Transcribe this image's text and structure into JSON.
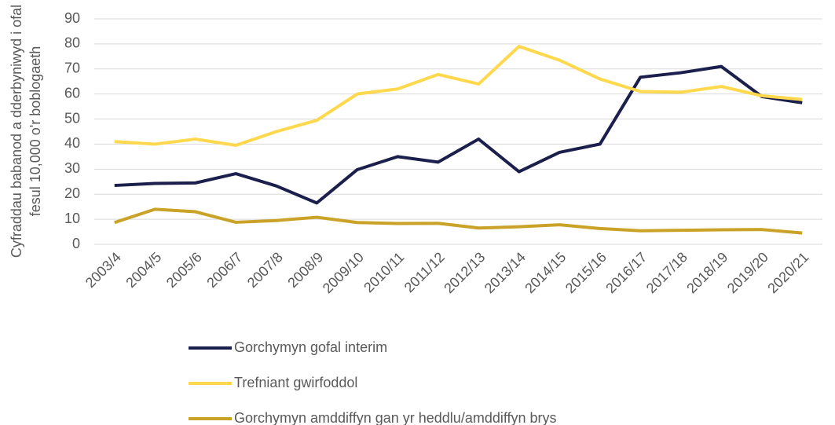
{
  "chart_data": {
    "type": "line",
    "y_label": [
      "Cyfraddau babanod a dderbyniwyd i ofal",
      "fesul 10,000 o'r boblogaeth"
    ],
    "categories": [
      "2003/4",
      "2004/5",
      "2005/6",
      "2006/7",
      "2007/8",
      "2008/9",
      "2009/10",
      "2010/11",
      "2011/12",
      "2012/13",
      "2013/14",
      "2014/15",
      "2015/16",
      "2016/17",
      "2017/18",
      "2018/19",
      "2019/20",
      "2020/21"
    ],
    "series": [
      {
        "name": "Gorchymyn gofal interim",
        "color": "#1b1f4c",
        "values": [
          23.5,
          24.3,
          24.5,
          28.2,
          23.3,
          16.5,
          29.8,
          35,
          32.8,
          42,
          29,
          36.7,
          40,
          66.7,
          68.5,
          71,
          59,
          56.5
        ]
      },
      {
        "name": "Trefniant gwirfoddol",
        "color": "#ffd84d",
        "values": [
          41,
          40,
          42,
          39.5,
          45,
          49.5,
          60,
          62,
          67.8,
          64,
          79,
          73.5,
          66,
          61,
          60.7,
          63,
          59.3,
          57.8
        ]
      },
      {
        "name": "Gorchymyn amddiffyn gan yr heddlu/amddiffyn brys",
        "color": "#c9a227",
        "values": [
          8.7,
          14,
          13,
          8.8,
          9.5,
          10.8,
          8.7,
          8.3,
          8.4,
          6.5,
          7,
          7.8,
          6.3,
          5.4,
          5.6,
          5.8,
          5.9,
          4.5
        ]
      }
    ],
    "ylim": [
      0,
      90
    ],
    "yticks": [
      0,
      10,
      20,
      30,
      40,
      50,
      60,
      70,
      80,
      90
    ],
    "grid": true,
    "legend": "bottom"
  }
}
